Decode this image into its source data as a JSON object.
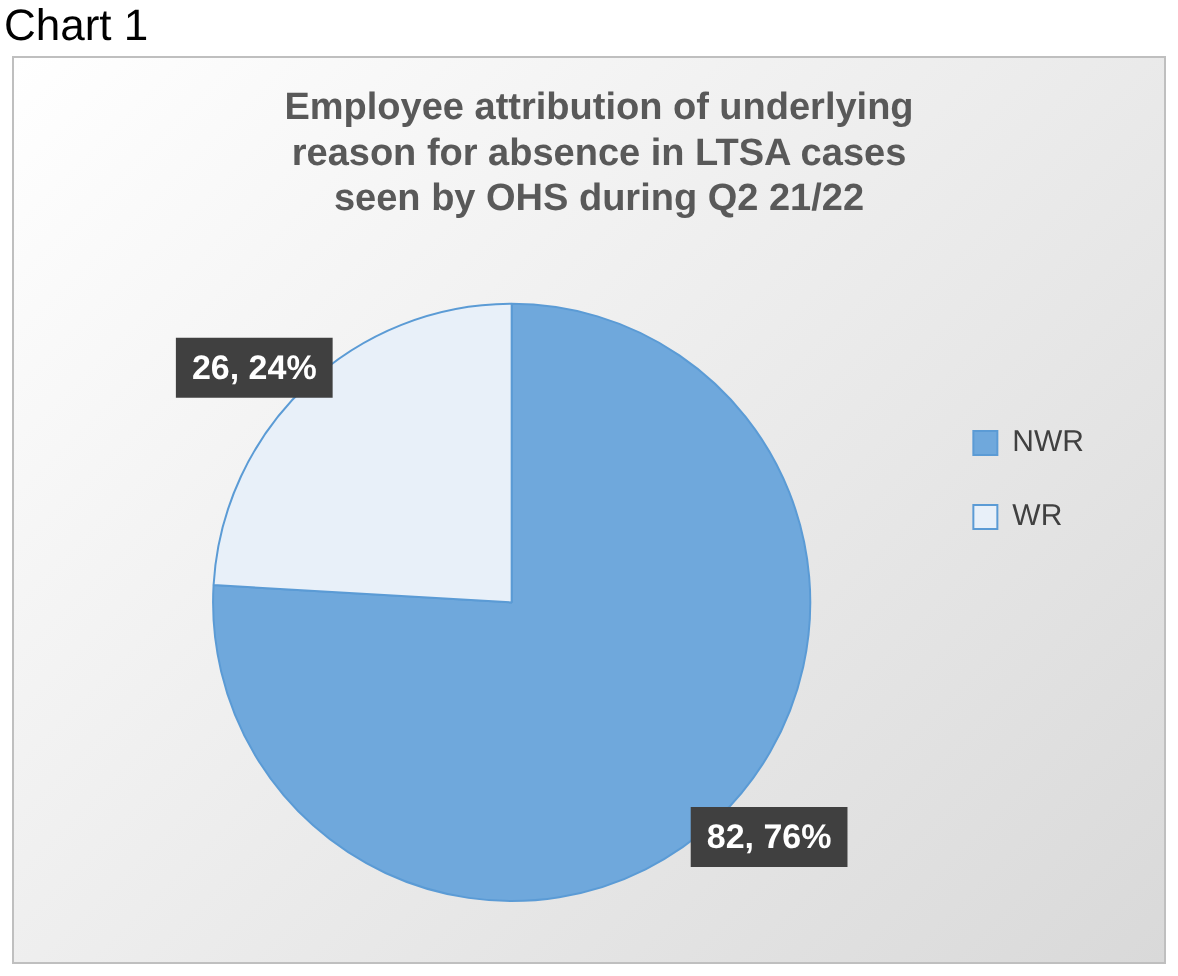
{
  "chart_data": {
    "type": "pie",
    "title": "Employee attribution of underlying reason for absence in LTSA cases seen by OHS during Q2 21/22",
    "categories": [
      "NWR",
      "WR"
    ],
    "values": [
      82,
      26
    ],
    "value_labels": [
      "82, 76%",
      "26, 24%"
    ],
    "colors": [
      "#6fa8dc",
      "#e8f0f9"
    ],
    "legend": "right",
    "annotations": [
      "Chart 1"
    ]
  }
}
